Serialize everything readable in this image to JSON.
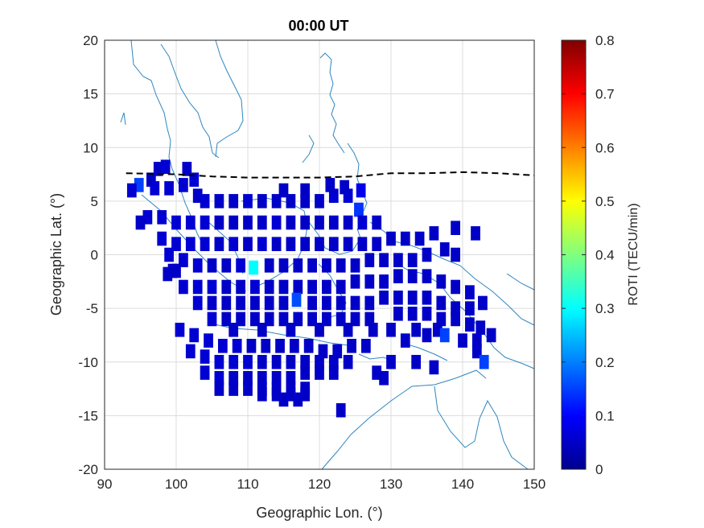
{
  "chart_data": {
    "type": "heatmap",
    "title": "00:00 UT",
    "xlabel": "Geographic Lon. (°)",
    "ylabel": "Geographic Lat. (°)",
    "xlim": [
      90,
      150
    ],
    "ylim": [
      -20,
      20
    ],
    "xticks": [
      "90",
      "100",
      "110",
      "120",
      "130",
      "140",
      "150"
    ],
    "yticks": [
      "20",
      "15",
      "10",
      "5",
      "0",
      "-5",
      "-10",
      "-15",
      "-20"
    ],
    "grid": true,
    "colorbar": {
      "label": "ROTI (TECU/min)",
      "range": [
        0,
        0.8
      ],
      "ticks": [
        "0.8",
        "0.7",
        "0.6",
        "0.5",
        "0.4",
        "0.3",
        "0.2",
        "0.1",
        "0"
      ],
      "colormap": "jet"
    },
    "dip_equator_line": [
      [
        93,
        7.6
      ],
      [
        100,
        7.5
      ],
      [
        105,
        7.3
      ],
      [
        110,
        7.2
      ],
      [
        115,
        7.2
      ],
      [
        120,
        7.2
      ],
      [
        125,
        7.3
      ],
      [
        130,
        7.6
      ],
      [
        135,
        7.6
      ],
      [
        140,
        7.7
      ],
      [
        145,
        7.6
      ],
      [
        150,
        7.4
      ]
    ],
    "cells": [
      [
        97.5,
        8.0,
        0.05
      ],
      [
        98.5,
        8.2,
        0.06
      ],
      [
        101.5,
        8.0,
        0.05
      ],
      [
        96.5,
        7.0,
        0.05
      ],
      [
        94.8,
        6.5,
        0.15
      ],
      [
        93.8,
        6.0,
        0.06
      ],
      [
        97.0,
        6.2,
        0.06
      ],
      [
        99.0,
        6.2,
        0.06
      ],
      [
        101.0,
        6.5,
        0.06
      ],
      [
        102.5,
        7.0,
        0.06
      ],
      [
        103.0,
        5.5,
        0.05
      ],
      [
        104.0,
        5.0,
        0.06
      ],
      [
        106.0,
        5.0,
        0.05
      ],
      [
        108.0,
        5.0,
        0.05
      ],
      [
        110.0,
        5.0,
        0.06
      ],
      [
        112.0,
        5.0,
        0.05
      ],
      [
        114.0,
        5.0,
        0.05
      ],
      [
        116.0,
        5.0,
        0.05
      ],
      [
        118.0,
        5.0,
        0.05
      ],
      [
        120.0,
        5.0,
        0.05
      ],
      [
        122.0,
        5.5,
        0.06
      ],
      [
        124.0,
        5.5,
        0.06
      ],
      [
        125.8,
        6.0,
        0.08
      ],
      [
        115.0,
        6.0,
        0.05
      ],
      [
        118.0,
        6.0,
        0.05
      ],
      [
        121.5,
        6.5,
        0.05
      ],
      [
        123.5,
        6.3,
        0.05
      ],
      [
        125.5,
        4.2,
        0.14
      ],
      [
        96.0,
        3.5,
        0.06
      ],
      [
        98.0,
        3.5,
        0.06
      ],
      [
        100.0,
        3.0,
        0.06
      ],
      [
        102.0,
        3.0,
        0.06
      ],
      [
        104.0,
        3.0,
        0.06
      ],
      [
        106.0,
        3.0,
        0.05
      ],
      [
        108.0,
        3.0,
        0.05
      ],
      [
        110.0,
        3.0,
        0.05
      ],
      [
        112.0,
        3.0,
        0.05
      ],
      [
        114.0,
        3.0,
        0.06
      ],
      [
        116.0,
        3.0,
        0.05
      ],
      [
        118.0,
        3.0,
        0.05
      ],
      [
        120.0,
        3.0,
        0.05
      ],
      [
        122.0,
        3.0,
        0.05
      ],
      [
        124.0,
        3.0,
        0.05
      ],
      [
        126.0,
        3.0,
        0.06
      ],
      [
        128.0,
        3.0,
        0.05
      ],
      [
        95.0,
        3.0,
        0.05
      ],
      [
        98.0,
        1.5,
        0.06
      ],
      [
        100.0,
        1.0,
        0.06
      ],
      [
        102.0,
        1.0,
        0.06
      ],
      [
        104.0,
        1.0,
        0.06
      ],
      [
        106.0,
        1.0,
        0.05
      ],
      [
        108.0,
        1.0,
        0.06
      ],
      [
        110.0,
        1.0,
        0.05
      ],
      [
        112.0,
        1.0,
        0.06
      ],
      [
        114.0,
        1.0,
        0.05
      ],
      [
        116.0,
        1.0,
        0.05
      ],
      [
        118.0,
        1.0,
        0.05
      ],
      [
        120.0,
        1.0,
        0.05
      ],
      [
        122.0,
        1.0,
        0.05
      ],
      [
        124.0,
        1.0,
        0.05
      ],
      [
        126.0,
        1.0,
        0.05
      ],
      [
        128.0,
        1.0,
        0.05
      ],
      [
        130.0,
        1.5,
        0.05
      ],
      [
        132.0,
        1.5,
        0.05
      ],
      [
        134.0,
        1.5,
        0.05
      ],
      [
        136.0,
        2.0,
        0.05
      ],
      [
        139.0,
        2.5,
        0.05
      ],
      [
        141.8,
        2.0,
        0.05
      ],
      [
        99.0,
        0.0,
        0.06
      ],
      [
        101.0,
        -0.5,
        0.06
      ],
      [
        103.0,
        -1.0,
        0.06
      ],
      [
        105.0,
        -1.0,
        0.05
      ],
      [
        107.0,
        -1.0,
        0.05
      ],
      [
        109.0,
        -1.0,
        0.06
      ],
      [
        110.8,
        -1.2,
        0.3
      ],
      [
        113.0,
        -1.0,
        0.05
      ],
      [
        115.0,
        -1.0,
        0.05
      ],
      [
        117.0,
        -1.0,
        0.05
      ],
      [
        119.0,
        -1.0,
        0.05
      ],
      [
        121.0,
        -1.0,
        0.05
      ],
      [
        123.0,
        -1.0,
        0.05
      ],
      [
        125.0,
        -1.0,
        0.05
      ],
      [
        127.0,
        -0.5,
        0.05
      ],
      [
        129.0,
        -0.5,
        0.05
      ],
      [
        131.0,
        -0.5,
        0.05
      ],
      [
        133.0,
        -0.5,
        0.05
      ],
      [
        135.0,
        0.0,
        0.05
      ],
      [
        137.5,
        0.5,
        0.05
      ],
      [
        139.0,
        0.0,
        0.05
      ],
      [
        100.0,
        -1.5,
        0.05
      ],
      [
        99.5,
        -1.5,
        0.05
      ],
      [
        101.0,
        -3.0,
        0.06
      ],
      [
        103.0,
        -3.0,
        0.06
      ],
      [
        105.0,
        -3.0,
        0.06
      ],
      [
        107.0,
        -3.0,
        0.05
      ],
      [
        109.0,
        -3.0,
        0.05
      ],
      [
        111.0,
        -3.0,
        0.06
      ],
      [
        113.0,
        -3.0,
        0.05
      ],
      [
        115.0,
        -3.0,
        0.05
      ],
      [
        117.0,
        -3.0,
        0.05
      ],
      [
        119.0,
        -3.0,
        0.05
      ],
      [
        121.0,
        -3.0,
        0.05
      ],
      [
        123.0,
        -3.0,
        0.05
      ],
      [
        125.0,
        -2.5,
        0.05
      ],
      [
        127.0,
        -2.5,
        0.05
      ],
      [
        129.0,
        -2.5,
        0.05
      ],
      [
        131.0,
        -2.0,
        0.05
      ],
      [
        133.0,
        -2.0,
        0.05
      ],
      [
        135.0,
        -2.0,
        0.05
      ],
      [
        137.0,
        -2.5,
        0.05
      ],
      [
        139.0,
        -3.0,
        0.05
      ],
      [
        141.0,
        -3.5,
        0.05
      ],
      [
        98.8,
        -1.8,
        0.05
      ],
      [
        103.0,
        -4.5,
        0.06
      ],
      [
        105.0,
        -4.5,
        0.05
      ],
      [
        107.0,
        -4.5,
        0.05
      ],
      [
        109.0,
        -4.5,
        0.05
      ],
      [
        111.0,
        -4.5,
        0.05
      ],
      [
        113.0,
        -4.5,
        0.05
      ],
      [
        115.0,
        -4.5,
        0.05
      ],
      [
        116.8,
        -4.2,
        0.16
      ],
      [
        119.0,
        -4.5,
        0.05
      ],
      [
        121.0,
        -4.5,
        0.05
      ],
      [
        123.0,
        -4.5,
        0.05
      ],
      [
        125.0,
        -4.5,
        0.05
      ],
      [
        127.0,
        -4.5,
        0.05
      ],
      [
        129.0,
        -4.0,
        0.05
      ],
      [
        131.0,
        -4.0,
        0.05
      ],
      [
        133.0,
        -4.0,
        0.05
      ],
      [
        135.0,
        -4.0,
        0.05
      ],
      [
        137.0,
        -4.5,
        0.05
      ],
      [
        139.0,
        -5.0,
        0.05
      ],
      [
        141.0,
        -5.0,
        0.05
      ],
      [
        142.8,
        -4.5,
        0.05
      ],
      [
        105.0,
        -6.0,
        0.06
      ],
      [
        107.0,
        -6.0,
        0.05
      ],
      [
        109.0,
        -6.0,
        0.05
      ],
      [
        111.0,
        -6.0,
        0.05
      ],
      [
        113.0,
        -6.0,
        0.05
      ],
      [
        115.0,
        -6.0,
        0.05
      ],
      [
        117.0,
        -6.0,
        0.05
      ],
      [
        119.0,
        -6.0,
        0.05
      ],
      [
        121.0,
        -6.0,
        0.05
      ],
      [
        123.0,
        -6.0,
        0.05
      ],
      [
        125.0,
        -6.0,
        0.05
      ],
      [
        127.0,
        -6.0,
        0.05
      ],
      [
        131.0,
        -5.5,
        0.05
      ],
      [
        133.0,
        -5.5,
        0.05
      ],
      [
        135.0,
        -5.5,
        0.05
      ],
      [
        137.0,
        -6.0,
        0.05
      ],
      [
        139.0,
        -6.0,
        0.05
      ],
      [
        141.0,
        -6.5,
        0.05
      ],
      [
        142.5,
        -6.8,
        0.05
      ],
      [
        108.0,
        -7.0,
        0.05
      ],
      [
        112.0,
        -7.0,
        0.05
      ],
      [
        116.0,
        -7.0,
        0.05
      ],
      [
        120.0,
        -7.0,
        0.05
      ],
      [
        124.0,
        -7.0,
        0.05
      ],
      [
        127.5,
        -7.0,
        0.05
      ],
      [
        130.0,
        -7.0,
        0.05
      ],
      [
        133.5,
        -7.0,
        0.05
      ],
      [
        136.5,
        -7.0,
        0.05
      ],
      [
        140.0,
        -8.0,
        0.05
      ],
      [
        142.0,
        -8.0,
        0.05
      ],
      [
        144.0,
        -7.5,
        0.05
      ],
      [
        100.5,
        -7.0,
        0.06
      ],
      [
        102.5,
        -7.5,
        0.06
      ],
      [
        104.5,
        -8.0,
        0.06
      ],
      [
        106.5,
        -8.5,
        0.06
      ],
      [
        108.5,
        -8.5,
        0.06
      ],
      [
        110.5,
        -8.5,
        0.05
      ],
      [
        112.5,
        -8.5,
        0.05
      ],
      [
        114.5,
        -8.5,
        0.05
      ],
      [
        116.5,
        -8.5,
        0.05
      ],
      [
        118.5,
        -8.5,
        0.05
      ],
      [
        120.5,
        -9.0,
        0.05
      ],
      [
        122.5,
        -9.0,
        0.05
      ],
      [
        124.5,
        -8.5,
        0.05
      ],
      [
        126.5,
        -8.5,
        0.05
      ],
      [
        132.0,
        -8.0,
        0.05
      ],
      [
        135.0,
        -7.5,
        0.05
      ],
      [
        137.5,
        -7.5,
        0.15
      ],
      [
        142.0,
        -9.0,
        0.05
      ],
      [
        102.0,
        -9.0,
        0.06
      ],
      [
        104.0,
        -9.5,
        0.06
      ],
      [
        106.0,
        -10.0,
        0.06
      ],
      [
        108.0,
        -10.0,
        0.06
      ],
      [
        110.0,
        -10.0,
        0.06
      ],
      [
        112.0,
        -10.0,
        0.05
      ],
      [
        114.0,
        -10.0,
        0.05
      ],
      [
        116.0,
        -10.0,
        0.05
      ],
      [
        118.0,
        -10.0,
        0.05
      ],
      [
        120.0,
        -10.0,
        0.05
      ],
      [
        122.0,
        -10.0,
        0.05
      ],
      [
        124.0,
        -10.0,
        0.05
      ],
      [
        130.0,
        -10.0,
        0.05
      ],
      [
        133.5,
        -10.0,
        0.05
      ],
      [
        104.0,
        -11.0,
        0.06
      ],
      [
        106.0,
        -11.5,
        0.06
      ],
      [
        108.0,
        -11.5,
        0.05
      ],
      [
        110.0,
        -11.5,
        0.05
      ],
      [
        112.0,
        -11.5,
        0.05
      ],
      [
        114.0,
        -11.5,
        0.05
      ],
      [
        116.0,
        -11.5,
        0.05
      ],
      [
        118.0,
        -11.0,
        0.05
      ],
      [
        120.0,
        -11.0,
        0.05
      ],
      [
        122.0,
        -11.0,
        0.05
      ],
      [
        128.0,
        -11.0,
        0.05
      ],
      [
        136.0,
        -10.5,
        0.05
      ],
      [
        143.0,
        -10.0,
        0.15
      ],
      [
        106.0,
        -12.5,
        0.05
      ],
      [
        108.0,
        -12.5,
        0.05
      ],
      [
        110.0,
        -12.5,
        0.05
      ],
      [
        112.0,
        -12.5,
        0.05
      ],
      [
        114.0,
        -12.5,
        0.05
      ],
      [
        116.0,
        -12.5,
        0.05
      ],
      [
        118.0,
        -12.5,
        0.05
      ],
      [
        129.0,
        -11.5,
        0.05
      ],
      [
        112.0,
        -13.0,
        0.05
      ],
      [
        114.0,
        -13.0,
        0.05
      ],
      [
        116.0,
        -13.0,
        0.05
      ],
      [
        118.0,
        -13.0,
        0.05
      ],
      [
        115.0,
        -13.5,
        0.05
      ],
      [
        117.0,
        -13.5,
        0.05
      ],
      [
        123.0,
        -14.5,
        0.05
      ]
    ]
  }
}
